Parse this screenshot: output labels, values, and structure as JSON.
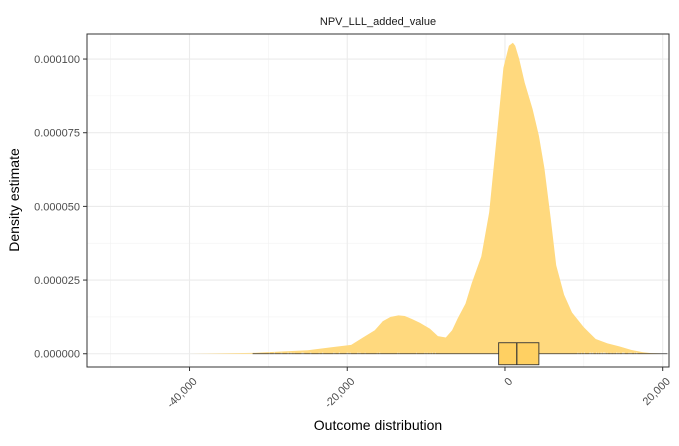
{
  "chart_data": {
    "type": "area",
    "title": "NPV_LLL_added_value",
    "xlabel": "Outcome distribution",
    "ylabel": "Density estimate",
    "xlim": [
      -53000,
      20800
    ],
    "ylim": [
      -4.5e-06,
      0.0001085
    ],
    "x_ticks": [
      {
        "value": -40000,
        "label": "-40,000"
      },
      {
        "value": -20000,
        "label": "-20,000"
      },
      {
        "value": 0,
        "label": "0"
      },
      {
        "value": 20000,
        "label": "20,000"
      }
    ],
    "y_ticks": [
      {
        "value": 0.0,
        "label": "0.000000"
      },
      {
        "value": 2.5e-05,
        "label": "0.000025"
      },
      {
        "value": 5e-05,
        "label": "0.000050"
      },
      {
        "value": 7.5e-05,
        "label": "0.000075"
      },
      {
        "value": 0.0001,
        "label": "0.000100"
      }
    ],
    "grid": true,
    "fill_color": "#FFD97E",
    "series": [
      {
        "x": [
          -53000,
          -40000,
          -32000,
          -28000,
          -25000,
          -22000,
          -19500,
          -18000,
          -16500,
          -15500,
          -14500,
          -13500,
          -12700,
          -11800,
          -10800,
          -9500,
          -8500,
          -7500,
          -6700,
          -6000,
          -5000,
          -4200,
          -3000,
          -2000,
          -1000,
          -200,
          500,
          1000,
          1300,
          1800,
          2500,
          3500,
          4300,
          5000,
          5800,
          6500,
          7500,
          8500,
          10000,
          11500,
          13000,
          14500,
          16000,
          17500,
          18500,
          20800
        ],
        "y": [
          0.0,
          0.0,
          3e-07,
          8e-07,
          1.2e-06,
          2.2e-06,
          3e-06,
          5.5e-06,
          8e-06,
          1.1e-05,
          1.25e-05,
          1.3e-05,
          1.28e-05,
          1.18e-05,
          1.05e-05,
          8.5e-06,
          6e-06,
          5.5e-06,
          8e-06,
          1.2e-05,
          1.7e-05,
          2.4e-05,
          3.3e-05,
          4.8e-05,
          7.5e-05,
          9.7e-05,
          0.0001045,
          0.0001055,
          0.0001045,
          0.0001,
          9.2e-05,
          8.3e-05,
          7.4e-05,
          6.3e-05,
          4.6e-05,
          3e-05,
          2e-05,
          1.4e-05,
          9e-06,
          5e-06,
          3.5e-06,
          2.5e-06,
          1.3e-06,
          5e-07,
          2e-07,
          0.0
        ]
      }
    ],
    "boxplot": {
      "q1": -800,
      "median": 1500,
      "q3": 4300,
      "whisker_low": -32000,
      "whisker_high": 20600
    }
  }
}
